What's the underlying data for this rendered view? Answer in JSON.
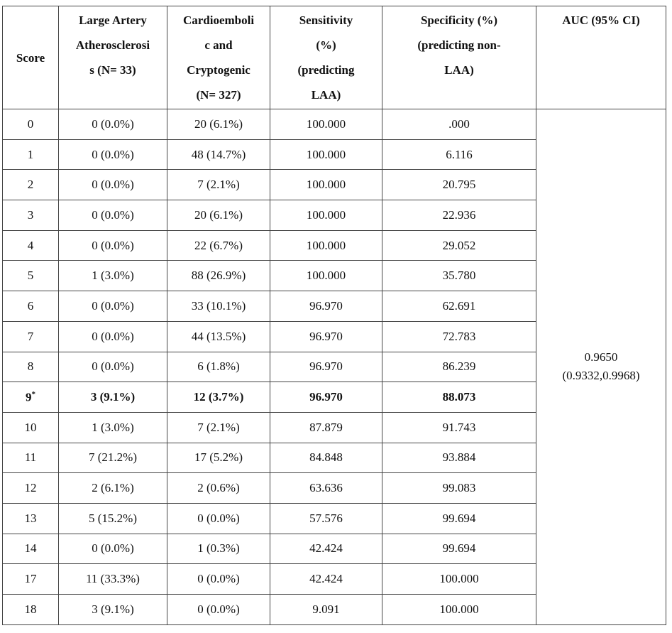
{
  "table": {
    "header": [
      [
        "Score"
      ],
      [
        "Large Artery",
        "Atherosclerosi",
        "s  (N= 33)"
      ],
      [
        "Cardioemboli",
        "c and",
        "Cryptogenic",
        "(N= 327)"
      ],
      [
        "Sensitivity",
        "(%)",
        "(predicting",
        "LAA)"
      ],
      [
        "Specificity (%)",
        "(predicting non-",
        "LAA)"
      ],
      [
        "AUC (95% CI)"
      ]
    ],
    "rows": [
      {
        "score": "0",
        "laa": "0 (0.0%)",
        "other": "20 (6.1%)",
        "sensitivity": "100.000",
        "specificity": ".000"
      },
      {
        "score": "1",
        "laa": "0 (0.0%)",
        "other": "48 (14.7%)",
        "sensitivity": "100.000",
        "specificity": "6.116"
      },
      {
        "score": "2",
        "laa": "0 (0.0%)",
        "other": "7 (2.1%)",
        "sensitivity": "100.000",
        "specificity": "20.795"
      },
      {
        "score": "3",
        "laa": "0 (0.0%)",
        "other": "20 (6.1%)",
        "sensitivity": "100.000",
        "specificity": "22.936"
      },
      {
        "score": "4",
        "laa": "0 (0.0%)",
        "other": "22 (6.7%)",
        "sensitivity": "100.000",
        "specificity": "29.052"
      },
      {
        "score": "5",
        "laa": "1 (3.0%)",
        "other": "88 (26.9%)",
        "sensitivity": "100.000",
        "specificity": "35.780"
      },
      {
        "score": "6",
        "laa": "0 (0.0%)",
        "other": "33 (10.1%)",
        "sensitivity": "96.970",
        "specificity": "62.691"
      },
      {
        "score": "7",
        "laa": "0 (0.0%)",
        "other": "44 (13.5%)",
        "sensitivity": "96.970",
        "specificity": "72.783"
      },
      {
        "score": "8",
        "laa": "0 (0.0%)",
        "other": "6 (1.8%)",
        "sensitivity": "96.970",
        "specificity": "86.239"
      },
      {
        "score": "9",
        "note": "*",
        "bold": true,
        "laa": "3 (9.1%)",
        "other": "12 (3.7%)",
        "sensitivity": "96.970",
        "specificity": "88.073"
      },
      {
        "score": "10",
        "laa": "1 (3.0%)",
        "other": "7 (2.1%)",
        "sensitivity": "87.879",
        "specificity": "91.743"
      },
      {
        "score": "11",
        "laa": "7 (21.2%)",
        "other": "17 (5.2%)",
        "sensitivity": "84.848",
        "specificity": "93.884"
      },
      {
        "score": "12",
        "laa": "2 (6.1%)",
        "other": "2 (0.6%)",
        "sensitivity": "63.636",
        "specificity": "99.083"
      },
      {
        "score": "13",
        "laa": "5 (15.2%)",
        "other": "0 (0.0%)",
        "sensitivity": "57.576",
        "specificity": "99.694"
      },
      {
        "score": "14",
        "laa": "0 (0.0%)",
        "other": "1 (0.3%)",
        "sensitivity": "42.424",
        "specificity": "99.694"
      },
      {
        "score": "17",
        "laa": "11 (33.3%)",
        "other": "0 (0.0%)",
        "sensitivity": "42.424",
        "specificity": "100.000"
      },
      {
        "score": "18",
        "laa": "3 (9.1%)",
        "other": "0 (0.0%)",
        "sensitivity": "9.091",
        "specificity": "100.000"
      }
    ],
    "auc": [
      "0.9650",
      "(0.9332,0.9968)"
    ]
  }
}
